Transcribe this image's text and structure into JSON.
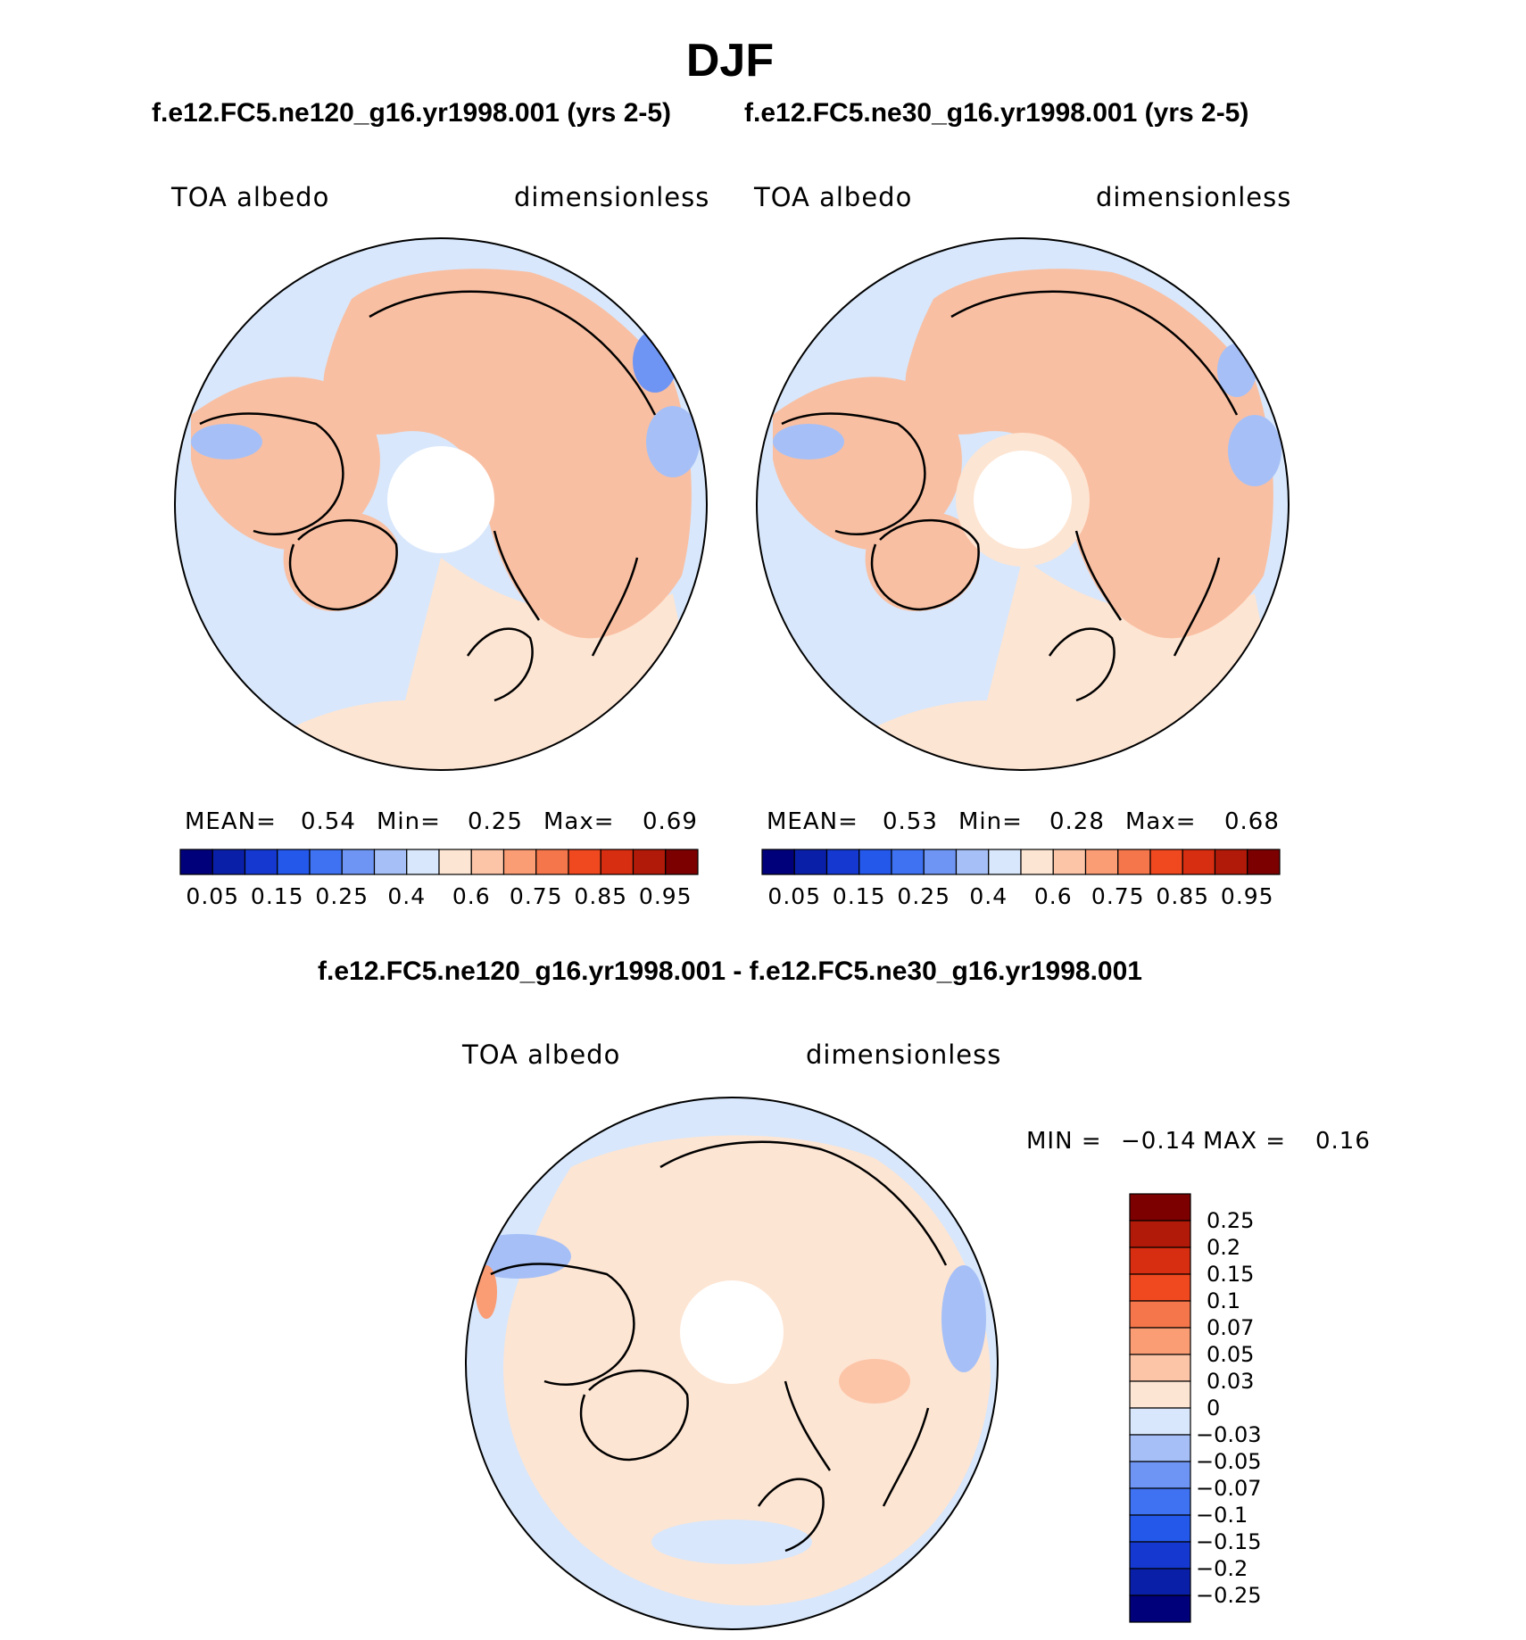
{
  "main_title": "DJF",
  "panels": [
    {
      "case_title": "f.e12.FC5.ne120_g16.yr1998.001 (yrs 2-5)",
      "variable": "TOA albedo",
      "units": "dimensionless",
      "mean_label": "MEAN=",
      "mean_value": "0.54",
      "min_label": "Min=",
      "min_value": "0.25",
      "max_label": "Max=",
      "max_value": "0.69"
    },
    {
      "case_title": "f.e12.FC5.ne30_g16.yr1998.001 (yrs 2-5)",
      "variable": "TOA albedo",
      "units": "dimensionless",
      "mean_label": "MEAN=",
      "mean_value": "0.53",
      "min_label": "Min=",
      "min_value": "0.28",
      "max_label": "Max=",
      "max_value": "0.68"
    }
  ],
  "colorbar_top": {
    "colors": [
      "#00007a",
      "#0a1fa8",
      "#1539d0",
      "#2458ea",
      "#3e72f2",
      "#6f95f4",
      "#a6c0f7",
      "#d8e7fb",
      "#fde5d3",
      "#fcc5a8",
      "#fa9c74",
      "#f5764a",
      "#f0481f",
      "#d72d10",
      "#b11a08",
      "#7c0000"
    ],
    "tick_labels": [
      "0.05",
      "0.15",
      "0.25",
      "0.4",
      "0.6",
      "0.75",
      "0.85",
      "0.95"
    ]
  },
  "diff_panel": {
    "title": "f.e12.FC5.ne120_g16.yr1998.001 - f.e12.FC5.ne30_g16.yr1998.001",
    "variable": "TOA albedo",
    "units": "dimensionless",
    "min_label": "MIN =",
    "min_value": "−0.14",
    "max_label": "MAX =",
    "max_value": "0.16",
    "colorbar": {
      "colors": [
        "#7c0000",
        "#b11a08",
        "#d72d10",
        "#f0481f",
        "#f5764a",
        "#fa9c74",
        "#fcc5a8",
        "#fde5d3",
        "#d8e7fb",
        "#a6c0f7",
        "#6f95f4",
        "#3e72f2",
        "#2458ea",
        "#1539d0",
        "#0a1fa8",
        "#00007a"
      ],
      "tick_labels": [
        "0.25",
        "0.2",
        "0.15",
        "0.1",
        "0.07",
        "0.05",
        "0.03",
        "0",
        "−0.03",
        "−0.05",
        "−0.07",
        "−0.1",
        "−0.15",
        "−0.2",
        "−0.25"
      ]
    }
  },
  "map_colors": {
    "ocean": "#d8e7fb",
    "land": "#f9bfa2",
    "land_light": "#fde5d3",
    "blue_mid": "#a6c0f7",
    "blue_dark": "#6f95f4",
    "coast": "#000000",
    "diff_pos": "#fde5d3",
    "diff_neg": "#d8e7fb"
  }
}
